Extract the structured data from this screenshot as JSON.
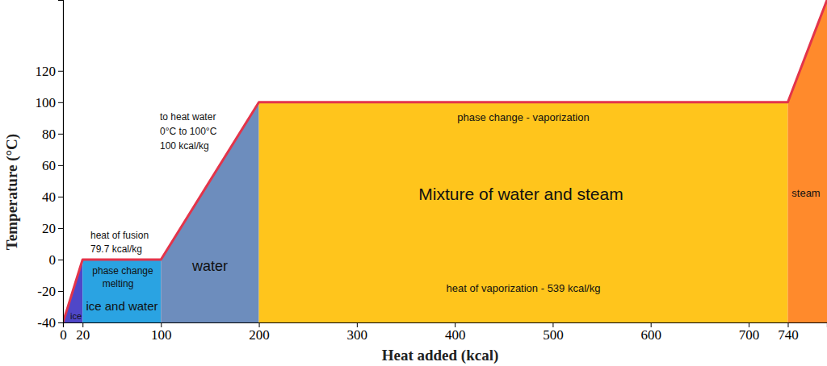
{
  "chart_data": {
    "type": "line",
    "x_label": "Heat added (kcal)",
    "y_label": "Temperature (°C)",
    "xlim": [
      0,
      780
    ],
    "ylim": [
      -40,
      165
    ],
    "xticks": [
      0,
      20,
      100,
      200,
      300,
      400,
      500,
      600,
      700,
      740
    ],
    "yticks": [
      -40,
      -20,
      0,
      20,
      40,
      60,
      80,
      100,
      120
    ],
    "grid": false,
    "series": [
      {
        "color": "#e3344a",
        "line_style": "solid",
        "x": [
          0,
          20,
          100,
          200,
          740,
          780
        ],
        "values": [
          -40,
          0,
          0,
          100,
          100,
          165
        ]
      }
    ],
    "regions": [
      {
        "from": 0,
        "to": 20,
        "color": "#4f47c8",
        "labels": [
          "ice"
        ]
      },
      {
        "from": 20,
        "to": 100,
        "color": "#2aa3e2",
        "labels": [
          "phase change",
          "melting",
          "ice and water"
        ]
      },
      {
        "from": 100,
        "to": 200,
        "color": "#6d8dbd",
        "labels": [
          "water"
        ]
      },
      {
        "from": 200,
        "to": 740,
        "color": "#ffc51c",
        "labels": [
          "Mixture of water and steam"
        ]
      },
      {
        "from": 740,
        "to": 780,
        "color": "#ff8a2c",
        "labels": [
          "steam"
        ]
      }
    ],
    "annotations": [
      {
        "text": [
          "heat of fusion",
          "79.7 kcal/kg"
        ]
      },
      {
        "text": [
          "to heat water",
          "0°C to 100°C",
          "100 kcal/kg"
        ]
      },
      {
        "text": [
          "phase change - vaporization"
        ]
      },
      {
        "text": [
          "heat of vaporization - 539 kcal/kg"
        ]
      }
    ]
  }
}
